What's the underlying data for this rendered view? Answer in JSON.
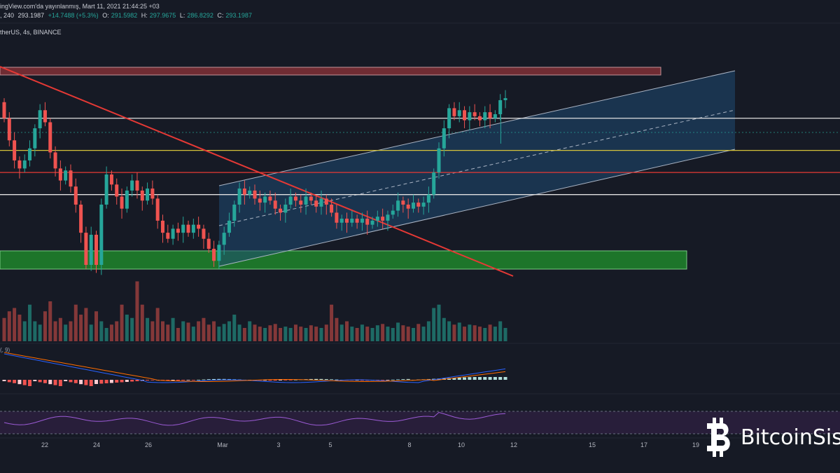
{
  "header": {
    "published": "ingView.com'da yayınlanmış, Mart 11, 2021 21:44:25 +03",
    "interval": ", 240",
    "open": "293.1987",
    "change": "+14.7488 (+5.3%)",
    "o_label": "O:",
    "o_value": "291.5982",
    "h_label": "H:",
    "h_value": "297.9675",
    "l_label": "L:",
    "l_value": "286.8292",
    "c_label": "C:",
    "c_value": "293.1987",
    "symbol": "therUS, 4s, BINANCE"
  },
  "macd_label": "(, 9)",
  "watermark": {
    "text": "BitcoinSis",
    "logo": "bitcoin-logo-icon"
  },
  "colors": {
    "background": "#161a25",
    "up": "#26a69a",
    "down": "#ef5350",
    "channel_fill": "#1f4a73",
    "resistance_zone": "#7a2f35",
    "support_zone": "#1e7a2b",
    "yellow_line": "#d4c23a",
    "red_line": "#e53935",
    "white_line": "#e0e0e0",
    "rsi_band": "#2a1f3d"
  },
  "chart_data": {
    "type": "candlestick",
    "x_tick_labels": [
      "22",
      "24",
      "26",
      "Mar",
      "3",
      "5",
      "8",
      "10",
      "12",
      "15",
      "17",
      "19"
    ],
    "x_tick_dates": [
      "2021-02-22",
      "2021-02-24",
      "2021-02-26",
      "2021-03-01",
      "2021-03-03",
      "2021-03-05",
      "2021-03-08",
      "2021-03-10",
      "2021-03-12",
      "2021-03-15",
      "2021-03-17",
      "2021-03-19"
    ],
    "candles": [
      {
        "o": 291,
        "c": 283
      },
      {
        "o": 283,
        "c": 272
      },
      {
        "o": 272,
        "c": 262
      },
      {
        "o": 262,
        "c": 258
      },
      {
        "o": 258,
        "c": 262
      },
      {
        "o": 262,
        "c": 268
      },
      {
        "o": 268,
        "c": 278
      },
      {
        "o": 278,
        "c": 287
      },
      {
        "o": 287,
        "c": 281
      },
      {
        "o": 281,
        "c": 266
      },
      {
        "o": 266,
        "c": 258
      },
      {
        "o": 258,
        "c": 252
      },
      {
        "o": 252,
        "c": 257
      },
      {
        "o": 257,
        "c": 249
      },
      {
        "o": 249,
        "c": 240
      },
      {
        "o": 240,
        "c": 226
      },
      {
        "o": 226,
        "c": 210
      },
      {
        "o": 210,
        "c": 225
      },
      {
        "o": 225,
        "c": 210
      },
      {
        "o": 210,
        "c": 240
      },
      {
        "o": 240,
        "c": 255
      },
      {
        "o": 255,
        "c": 250
      },
      {
        "o": 250,
        "c": 244
      },
      {
        "o": 244,
        "c": 238
      },
      {
        "o": 238,
        "c": 247
      },
      {
        "o": 247,
        "c": 252
      },
      {
        "o": 252,
        "c": 247
      },
      {
        "o": 247,
        "c": 242
      },
      {
        "o": 242,
        "c": 248
      },
      {
        "o": 248,
        "c": 243
      },
      {
        "o": 243,
        "c": 232
      },
      {
        "o": 232,
        "c": 226
      },
      {
        "o": 226,
        "c": 223
      },
      {
        "o": 223,
        "c": 228
      },
      {
        "o": 228,
        "c": 226
      },
      {
        "o": 226,
        "c": 230
      },
      {
        "o": 230,
        "c": 226
      },
      {
        "o": 226,
        "c": 230
      },
      {
        "o": 230,
        "c": 228
      },
      {
        "o": 228,
        "c": 223
      },
      {
        "o": 223,
        "c": 218
      },
      {
        "o": 218,
        "c": 212
      },
      {
        "o": 212,
        "c": 220
      },
      {
        "o": 220,
        "c": 226
      },
      {
        "o": 226,
        "c": 232
      },
      {
        "o": 232,
        "c": 240
      },
      {
        "o": 240,
        "c": 248
      },
      {
        "o": 248,
        "c": 245
      },
      {
        "o": 245,
        "c": 247
      },
      {
        "o": 247,
        "c": 243
      },
      {
        "o": 243,
        "c": 241
      },
      {
        "o": 241,
        "c": 244
      },
      {
        "o": 244,
        "c": 242
      },
      {
        "o": 242,
        "c": 238
      },
      {
        "o": 238,
        "c": 236
      },
      {
        "o": 236,
        "c": 240
      },
      {
        "o": 240,
        "c": 244
      },
      {
        "o": 244,
        "c": 242
      },
      {
        "o": 242,
        "c": 240
      },
      {
        "o": 240,
        "c": 244
      },
      {
        "o": 244,
        "c": 242
      },
      {
        "o": 242,
        "c": 239
      },
      {
        "o": 239,
        "c": 243
      },
      {
        "o": 243,
        "c": 240
      },
      {
        "o": 240,
        "c": 236
      },
      {
        "o": 236,
        "c": 231
      },
      {
        "o": 231,
        "c": 233
      },
      {
        "o": 233,
        "c": 231
      },
      {
        "o": 231,
        "c": 233
      },
      {
        "o": 233,
        "c": 231
      },
      {
        "o": 231,
        "c": 233
      },
      {
        "o": 233,
        "c": 230
      },
      {
        "o": 230,
        "c": 232
      },
      {
        "o": 232,
        "c": 234
      },
      {
        "o": 234,
        "c": 232
      },
      {
        "o": 232,
        "c": 235
      },
      {
        "o": 235,
        "c": 237
      },
      {
        "o": 237,
        "c": 242
      },
      {
        "o": 242,
        "c": 240
      },
      {
        "o": 240,
        "c": 238
      },
      {
        "o": 238,
        "c": 241
      },
      {
        "o": 241,
        "c": 239
      },
      {
        "o": 239,
        "c": 241
      },
      {
        "o": 241,
        "c": 245
      },
      {
        "o": 245,
        "c": 256
      },
      {
        "o": 256,
        "c": 268
      },
      {
        "o": 268,
        "c": 278
      },
      {
        "o": 278,
        "c": 288
      },
      {
        "o": 288,
        "c": 284
      },
      {
        "o": 284,
        "c": 287
      },
      {
        "o": 287,
        "c": 282
      },
      {
        "o": 282,
        "c": 286
      },
      {
        "o": 286,
        "c": 284
      },
      {
        "o": 284,
        "c": 282
      },
      {
        "o": 282,
        "c": 286
      },
      {
        "o": 286,
        "c": 283
      },
      {
        "o": 283,
        "c": 285
      },
      {
        "o": 285,
        "c": 292
      },
      {
        "o": 292,
        "c": 293
      }
    ],
    "volume_levels": [
      0.35,
      0.45,
      0.5,
      0.4,
      0.3,
      0.55,
      0.3,
      0.25,
      0.45,
      0.6,
      0.3,
      0.35,
      0.25,
      0.3,
      0.55,
      0.4,
      0.5,
      0.25,
      0.45,
      0.3,
      0.2,
      0.25,
      0.3,
      0.55,
      0.4,
      0.35,
      0.9,
      0.55,
      0.35,
      0.3,
      0.5,
      0.3,
      0.25,
      0.35,
      0.2,
      0.3,
      0.28,
      0.22,
      0.3,
      0.35,
      0.25,
      0.3,
      0.22,
      0.26,
      0.3,
      0.4,
      0.25,
      0.2,
      0.3,
      0.25,
      0.22,
      0.2,
      0.24,
      0.26,
      0.2,
      0.22,
      0.2,
      0.25,
      0.22,
      0.2,
      0.24,
      0.22,
      0.2,
      0.25,
      0.55,
      0.35,
      0.25,
      0.3,
      0.22,
      0.2,
      0.25,
      0.22,
      0.2,
      0.24,
      0.26,
      0.22,
      0.2,
      0.28,
      0.24,
      0.22,
      0.2,
      0.26,
      0.22,
      0.3,
      0.5,
      0.55,
      0.35,
      0.3,
      0.25,
      0.28,
      0.22,
      0.25,
      0.24,
      0.22,
      0.2,
      0.25,
      0.22,
      0.3,
      0.2
    ],
    "horizontal_levels": [
      {
        "price": 283,
        "color": "#e0e0e0"
      },
      {
        "price": 267,
        "color": "#d4c23a"
      },
      {
        "price": 256,
        "color": "#e53935"
      },
      {
        "price": 245,
        "color": "#e0e0e0"
      }
    ],
    "ylim": [
      205,
      322
    ]
  }
}
